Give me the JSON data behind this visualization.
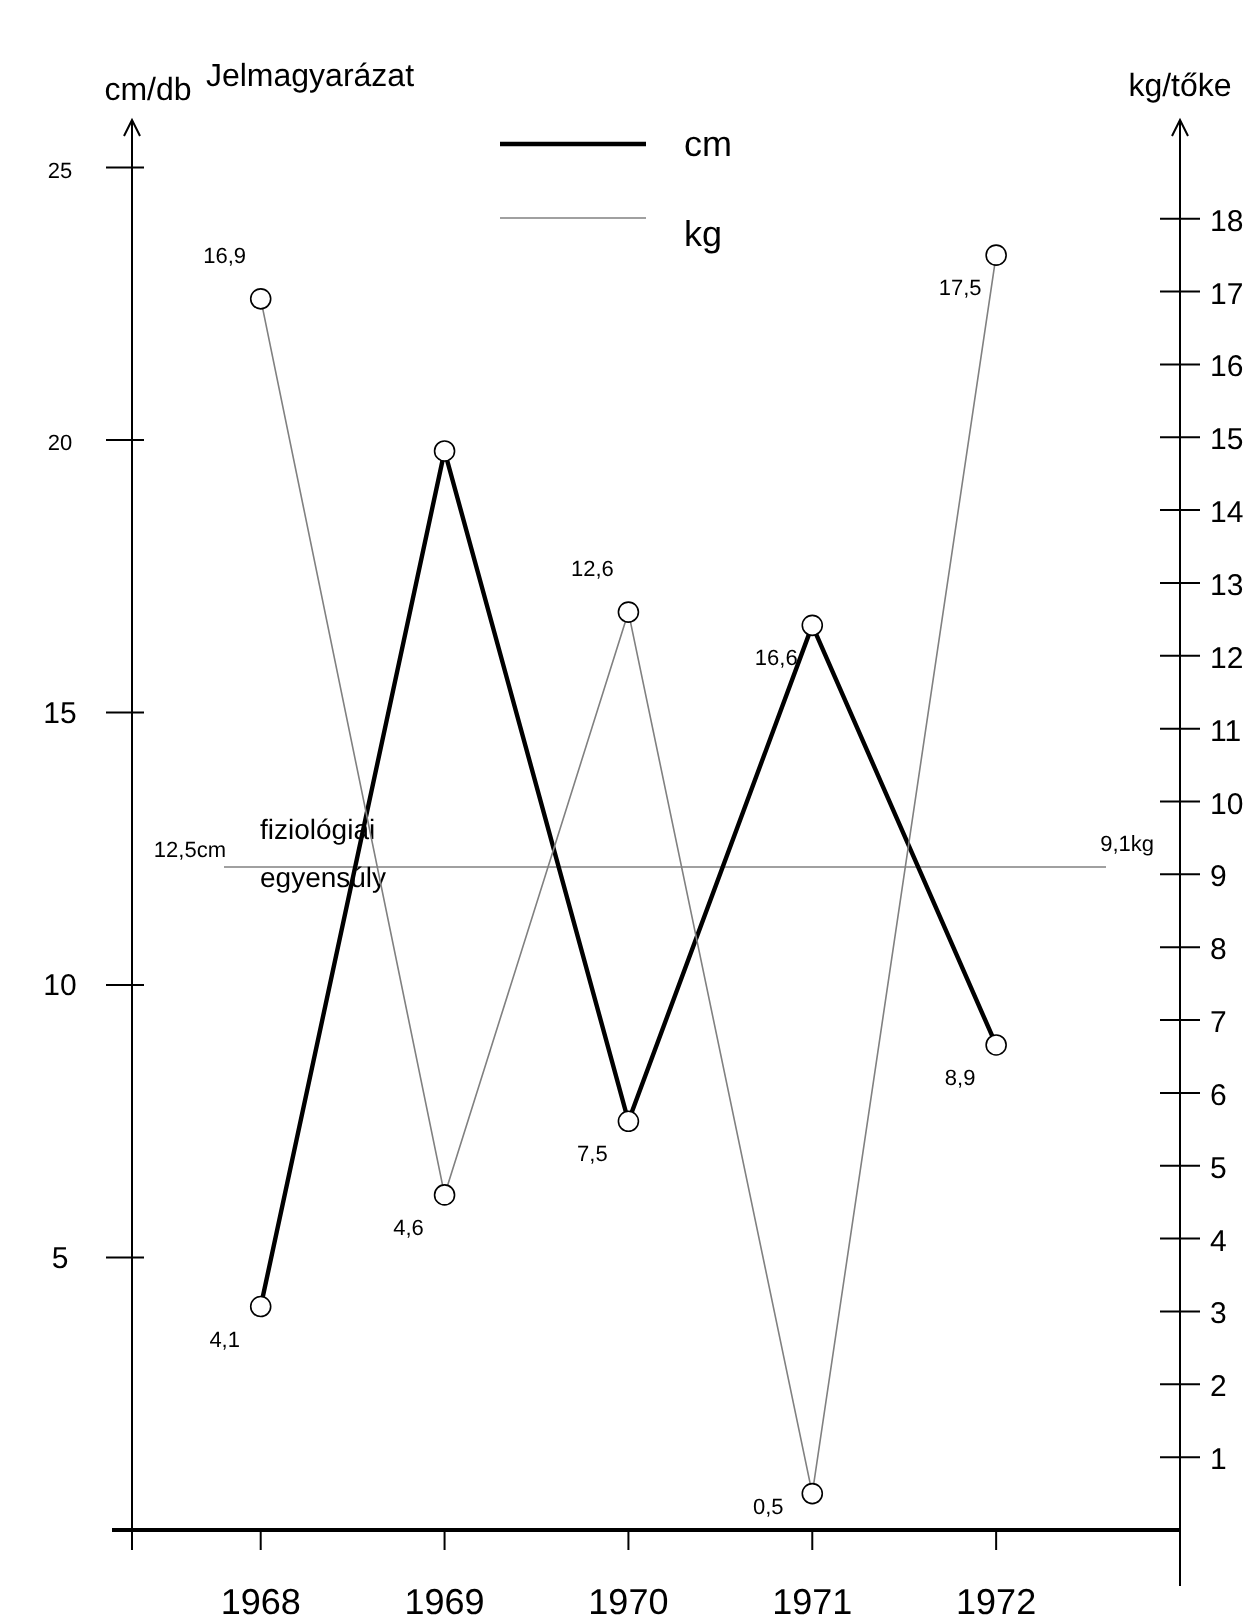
{
  "chart_data": {
    "type": "line",
    "ylabel": "cm/db",
    "y2label": "kg/tőke",
    "legend_title": "Jelmagyarázat",
    "legend": "top",
    "categories": [
      "1968",
      "1969",
      "1970",
      "1971",
      "1972"
    ],
    "series": [
      {
        "name": "cm",
        "color": "#000000",
        "values": [
          4.1,
          19.8,
          7.5,
          16.6,
          8.9
        ],
        "value_labels": [
          "4,1",
          null,
          "7,5",
          "16,6",
          "8,9"
        ]
      },
      {
        "name": "kg",
        "color": "#808080",
        "axis": "y2",
        "values": [
          16.9,
          4.6,
          12.6,
          0.5,
          17.5
        ],
        "value_labels": [
          "16,9",
          "4,6",
          "12,6",
          "0,5",
          "17,5"
        ]
      }
    ],
    "marker": "circle",
    "line_style": "solid",
    "grid": false,
    "ylim": [
      0,
      25.8
    ],
    "yticks": [
      5,
      10,
      15,
      20,
      25
    ],
    "y2lim": [
      0,
      19.3
    ],
    "y2ticks": [
      1,
      2,
      3,
      4,
      5,
      6,
      7,
      8,
      9,
      10,
      11,
      12,
      13,
      14,
      15,
      16,
      17,
      18
    ],
    "ref_lines": [
      {
        "axis": "y2",
        "value": 9.1,
        "label": "9,1kg",
        "color": "#a0a0a0"
      }
    ],
    "annotations": [
      "12,5cm",
      "fiziológiai egyensúly"
    ]
  }
}
